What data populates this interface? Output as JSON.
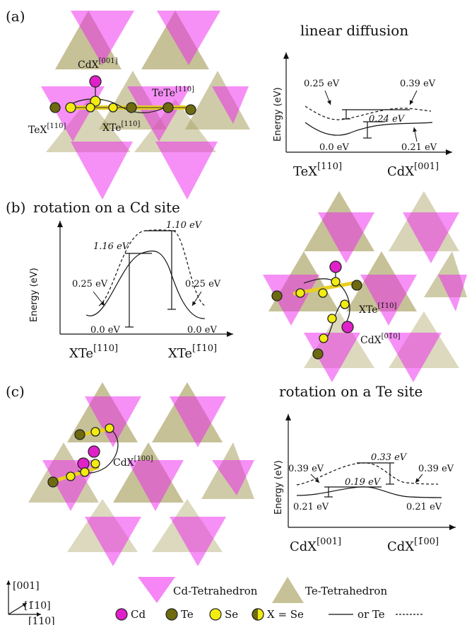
{
  "colors": {
    "cd_tetra": "#ee22ee",
    "te_tetra": "#a8a060",
    "cd_atom": "#e020c8",
    "te_atom": "#6e6a10",
    "se_atom": "#f2ec10",
    "bond": "#e8d020"
  },
  "panel_a": {
    "label": "(a)",
    "title": "linear diffusion",
    "ylabel": "Energy (eV)",
    "x_left": "TeX",
    "x_left_sup": "[110]",
    "x_right": "CdX",
    "x_right_sup": "[001]",
    "e_te_left": "0.25 eV",
    "e_te_right": "0.39 eV",
    "e_se_left": "0.0 eV",
    "e_se_right": "0.21 eV",
    "barrier": "0.24 eV",
    "struct_labels": {
      "cdx": "CdX",
      "cdx_sup": "[001]",
      "tete": "TeTe",
      "tete_sup": "[110]",
      "tex": "TeX",
      "tex_sup": "[110]",
      "xte": "XTe",
      "xte_sup": "[110]"
    }
  },
  "panel_b": {
    "label": "(b)",
    "title": "rotation on a Cd site",
    "ylabel": "Energy (eV)",
    "x_left": "XTe",
    "x_left_sup": "[110]",
    "x_right": "XTe",
    "x_right_sup": "[1̄10]",
    "barrier_te": "1.10 eV",
    "barrier_se": "1.16 eV",
    "e_te_left": "0.25 eV",
    "e_te_right": "0.25 eV",
    "e_se_left": "0.0 eV",
    "e_se_right": "0.0 eV",
    "struct_labels": {
      "xte": "XTe",
      "xte_sup": "[1̄10]",
      "cdx": "CdX",
      "cdx_sup": "[01̄0]"
    }
  },
  "panel_c": {
    "label": "(c)",
    "title": "rotation on a Te site",
    "ylabel": "Energy (eV)",
    "x_left": "CdX",
    "x_left_sup": "[001]",
    "x_right": "CdX",
    "x_right_sup": "[1̄00]",
    "barrier_te": "0.33 eV",
    "barrier_se": "0.19 eV",
    "e_te_left": "0.39 eV",
    "e_te_right": "0.39 eV",
    "e_se_left": "0.21 eV",
    "e_se_right": "0.21 eV",
    "struct_labels": {
      "cdx": "CdX",
      "cdx_sup": "[100]"
    }
  },
  "axes": {
    "z": "[001]",
    "y": "[1̄10]",
    "x": "[110]"
  },
  "legend": {
    "cd_tetra": "Cd-Tetrahedron",
    "te_tetra": "Te-Tetrahedron",
    "cd": "Cd",
    "te": "Te",
    "se": "Se",
    "x_def": "X = Se",
    "or_te": "or Te"
  }
}
